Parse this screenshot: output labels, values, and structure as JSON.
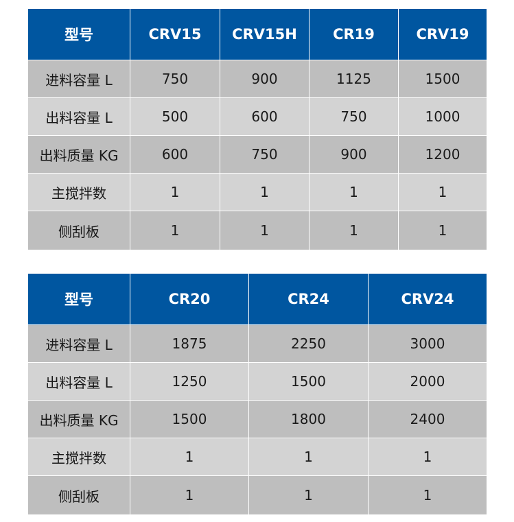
{
  "tables": [
    {
      "headers": [
        "型号",
        "CRV15",
        "CRV15H",
        "CR19",
        "CRV19"
      ],
      "rows": [
        [
          "进料容量 L",
          "750",
          "900",
          "1125",
          "1500"
        ],
        [
          "出料容量 L",
          "500",
          "600",
          "750",
          "1000"
        ],
        [
          "出料质量 KG",
          "600",
          "750",
          "900",
          "1200"
        ],
        [
          "主搅拌数",
          "1",
          "1",
          "1",
          "1"
        ],
        [
          "侧刮板",
          "1",
          "1",
          "1",
          "1"
        ]
      ]
    },
    {
      "headers": [
        "型号",
        "CR20",
        "CR24",
        "CRV24"
      ],
      "rows": [
        [
          "进料容量 L",
          "1875",
          "2250",
          "3000"
        ],
        [
          "出料容量 L",
          "1250",
          "1500",
          "2000"
        ],
        [
          "出料质量 KG",
          "1500",
          "1800",
          "2400"
        ],
        [
          "主搅拌数",
          "1",
          "1",
          "1"
        ],
        [
          "侧刮板",
          "1",
          "1",
          "1"
        ]
      ]
    }
  ],
  "colors": {
    "header": "#0056a0",
    "row_dark": "#bebebe",
    "row_light": "#d3d3d3"
  }
}
